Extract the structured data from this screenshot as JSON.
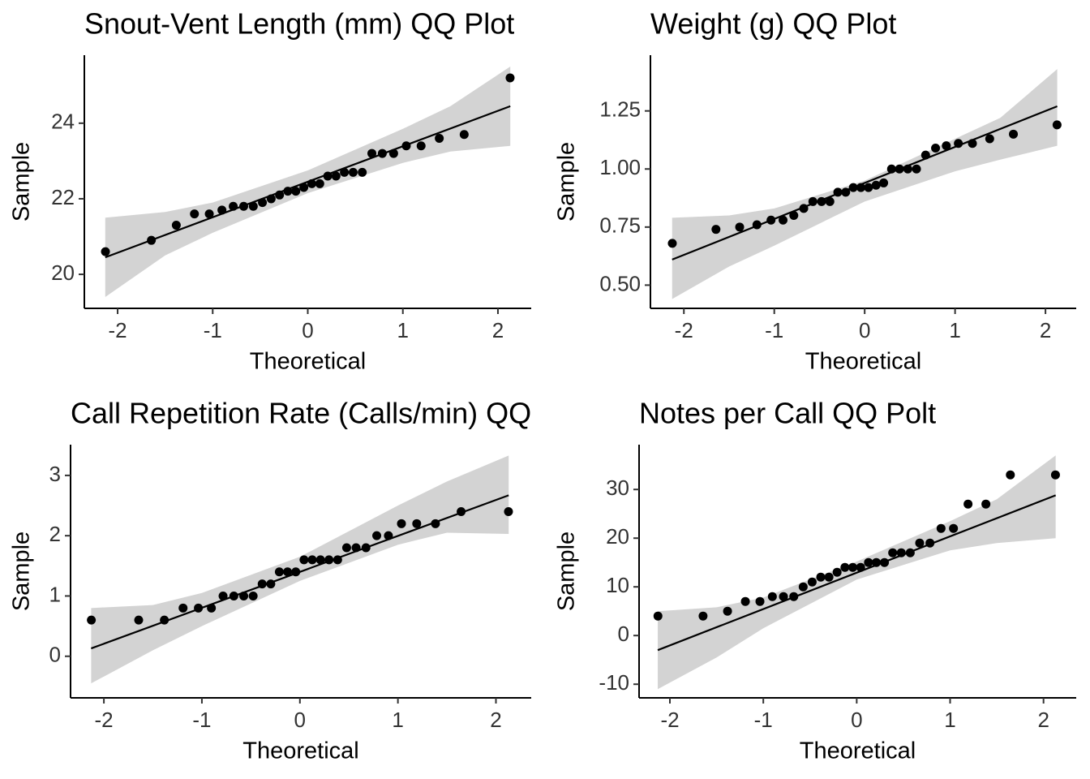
{
  "chart_data": [
    {
      "type": "scatter",
      "title": "Snout-Vent Length (mm) QQ Plot",
      "xlabel": "Theoretical",
      "ylabel": "Sample",
      "x": [
        -2.128,
        -1.645,
        -1.383,
        -1.192,
        -1.036,
        -0.903,
        -0.784,
        -0.674,
        -0.573,
        -0.477,
        -0.385,
        -0.297,
        -0.21,
        -0.126,
        -0.042,
        0.042,
        0.126,
        0.21,
        0.297,
        0.385,
        0.477,
        0.573,
        0.674,
        0.784,
        0.903,
        1.036,
        1.192,
        1.383,
        1.645,
        2.128
      ],
      "values": [
        20.6,
        20.9,
        21.3,
        21.6,
        21.6,
        21.7,
        21.8,
        21.8,
        21.8,
        21.9,
        22.0,
        22.1,
        22.2,
        22.2,
        22.3,
        22.4,
        22.4,
        22.6,
        22.6,
        22.7,
        22.7,
        22.7,
        23.2,
        23.2,
        23.2,
        23.4,
        23.4,
        23.6,
        23.7,
        25.2
      ],
      "line_x": [
        -2.13,
        2.13
      ],
      "line_y": [
        20.45,
        24.45
      ],
      "band_x": [
        -2.13,
        -1.5,
        -1,
        0,
        1,
        1.5,
        2.13
      ],
      "band_lower": [
        19.4,
        20.5,
        21.1,
        22.15,
        22.95,
        23.25,
        23.4
      ],
      "band_upper": [
        21.5,
        21.65,
        21.9,
        22.75,
        23.85,
        24.45,
        25.5
      ],
      "xlim": [
        -2.35,
        2.35
      ],
      "ylim": [
        19.1,
        25.8
      ],
      "xticks": [
        -2,
        -1,
        0,
        1,
        2
      ],
      "yticks": [
        20,
        22,
        24
      ],
      "color": "#000000",
      "band_color": "#d3d3d3"
    },
    {
      "type": "scatter",
      "title": "Weight (g) QQ Plot",
      "xlabel": "Theoretical",
      "ylabel": "Sample",
      "x": [
        -2.128,
        -1.645,
        -1.383,
        -1.192,
        -1.036,
        -0.903,
        -0.784,
        -0.674,
        -0.573,
        -0.477,
        -0.385,
        -0.297,
        -0.21,
        -0.126,
        -0.042,
        0.042,
        0.126,
        0.21,
        0.297,
        0.385,
        0.477,
        0.573,
        0.674,
        0.784,
        0.903,
        1.036,
        1.192,
        1.383,
        1.645,
        2.128
      ],
      "values": [
        0.68,
        0.74,
        0.75,
        0.76,
        0.78,
        0.78,
        0.8,
        0.83,
        0.86,
        0.86,
        0.86,
        0.9,
        0.9,
        0.92,
        0.92,
        0.92,
        0.93,
        0.94,
        1.0,
        1.0,
        1.0,
        1.0,
        1.06,
        1.09,
        1.1,
        1.11,
        1.11,
        1.13,
        1.15,
        1.19
      ],
      "line_x": [
        -2.13,
        2.13
      ],
      "line_y": [
        0.61,
        1.27
      ],
      "band_x": [
        -2.13,
        -1.5,
        -1,
        0,
        1,
        1.5,
        2.13
      ],
      "band_lower": [
        0.44,
        0.58,
        0.67,
        0.86,
        0.99,
        1.04,
        1.1
      ],
      "band_upper": [
        0.79,
        0.8,
        0.83,
        0.95,
        1.13,
        1.22,
        1.43
      ],
      "xlim": [
        -2.37,
        2.34
      ],
      "ylim": [
        0.4,
        1.49
      ],
      "xticks": [
        -2,
        -1,
        0,
        1,
        2
      ],
      "yticks": [
        {
          "value": 0.5,
          "label": "0.50"
        },
        {
          "value": 0.75,
          "label": "0.75"
        },
        {
          "value": 1,
          "label": "1.00"
        },
        {
          "value": 1.25,
          "label": "1.25"
        }
      ],
      "color": "#000000",
      "band_color": "#d3d3d3"
    },
    {
      "type": "scatter",
      "title": "Call Repetition Rate (Calls/min) QQ",
      "xlabel": "Theoretical",
      "ylabel": "Sample",
      "x": [
        -2.128,
        -1.645,
        -1.383,
        -1.192,
        -1.036,
        -0.903,
        -0.784,
        -0.674,
        -0.573,
        -0.477,
        -0.385,
        -0.297,
        -0.21,
        -0.126,
        -0.042,
        0.042,
        0.126,
        0.21,
        0.297,
        0.385,
        0.477,
        0.573,
        0.674,
        0.784,
        0.903,
        1.036,
        1.192,
        1.383,
        1.645,
        2.128
      ],
      "values": [
        0.6,
        0.6,
        0.6,
        0.8,
        0.8,
        0.8,
        1.0,
        1.0,
        1.0,
        1.0,
        1.2,
        1.2,
        1.4,
        1.4,
        1.4,
        1.6,
        1.6,
        1.6,
        1.6,
        1.6,
        1.8,
        1.8,
        1.8,
        2.0,
        2.0,
        2.2,
        2.2,
        2.2,
        2.4,
        2.4
      ],
      "line_x": [
        -2.13,
        2.13
      ],
      "line_y": [
        0.13,
        2.67
      ],
      "band_x": [
        -2.13,
        -1.5,
        -1,
        0,
        1,
        1.5,
        2.13
      ],
      "band_lower": [
        -0.45,
        0.1,
        0.5,
        1.25,
        1.85,
        2.05,
        2.03
      ],
      "band_upper": [
        0.8,
        0.85,
        1.05,
        1.65,
        2.5,
        2.9,
        3.33
      ],
      "xlim": [
        -2.34,
        2.36
      ],
      "ylim": [
        -0.69,
        3.51
      ],
      "xticks": [
        -2,
        -1,
        0,
        1,
        2
      ],
      "yticks": [
        0,
        1,
        2,
        3
      ],
      "color": "#000000",
      "band_color": "#d3d3d3"
    },
    {
      "type": "scatter",
      "title": "Notes per Call QQ Polt",
      "xlabel": "Theoretical",
      "ylabel": "Sample",
      "x": [
        -2.128,
        -1.645,
        -1.383,
        -1.192,
        -1.036,
        -0.903,
        -0.784,
        -0.674,
        -0.573,
        -0.477,
        -0.385,
        -0.297,
        -0.21,
        -0.126,
        -0.042,
        0.042,
        0.126,
        0.21,
        0.297,
        0.385,
        0.477,
        0.573,
        0.674,
        0.784,
        0.903,
        1.036,
        1.192,
        1.383,
        1.645,
        2.128
      ],
      "values": [
        4,
        4,
        5,
        7,
        7,
        8,
        8,
        8,
        10,
        11,
        12,
        12,
        13,
        14,
        14,
        14,
        15,
        15,
        15,
        17,
        17,
        17,
        19,
        19,
        22,
        22,
        27,
        27,
        33,
        33
      ],
      "line_x": [
        -2.13,
        2.13
      ],
      "line_y": [
        -3,
        28.8
      ],
      "band_x": [
        -2.13,
        -1.5,
        -1,
        0,
        1,
        1.5,
        2.13
      ],
      "band_lower": [
        -11,
        -4.5,
        1.5,
        11.5,
        17.5,
        19,
        20
      ],
      "band_upper": [
        5,
        5.8,
        7.8,
        15.2,
        23.5,
        28,
        37
      ],
      "xlim": [
        -2.33,
        2.35
      ],
      "ylim": [
        -12.8,
        39.2
      ],
      "xticks": [
        -2,
        -1,
        0,
        1,
        2
      ],
      "yticks": [
        -10,
        0,
        10,
        20,
        30
      ],
      "color": "#000000",
      "band_color": "#d3d3d3"
    }
  ]
}
